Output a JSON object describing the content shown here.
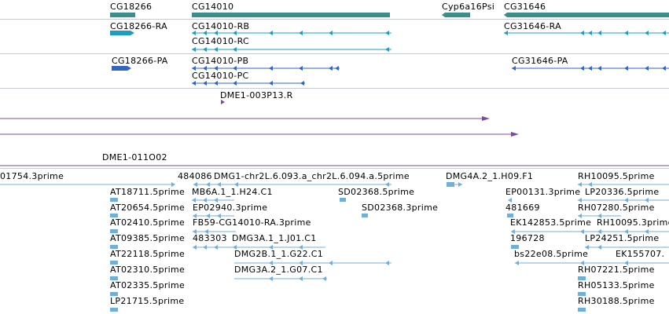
{
  "colors": {
    "gene": "#3a8e8b",
    "transcript_rna": "#1e9dbf",
    "transcript_protein": "#2f66c4",
    "primer": "#7a4aa8",
    "est": "#6fb0d8",
    "divider": "#c6ccd2"
  },
  "tracks": {
    "genes": {
      "labels": [
        "CG18266",
        "CG14010",
        "Cyp6a16Psi",
        "CG31646"
      ]
    },
    "transcripts": {
      "labels": [
        "CG18266-RA",
        "CG14010-RB",
        "CG14010-RC",
        "CG31646-RA"
      ]
    },
    "translations": {
      "labels": [
        "CG18266-PA",
        "CG14010-PB",
        "CG14010-PC",
        "CG31646-PA"
      ]
    },
    "primers": {
      "labels": [
        "DME1-003P13.R",
        "DME1-011O02"
      ]
    },
    "ests": {
      "labels": [
        "01754.3prime",
        "484086",
        "DMG1-chr2L.6.093.a_chr2L.6.094.a.5prime",
        "DMG4A.2_1.H09.F1",
        "RH10095.5prime",
        "AT18711.5prime",
        "MB6A.1_1.H24.C1",
        "SD02368.5prime",
        "EP00131.3prime",
        "LP20336.5prime",
        "AT20654.5prime",
        "EP02940.3prime",
        "SD02368.3prime",
        "481669",
        "RH07280.5prime",
        "AT02410.5prime",
        "FB59-CG14010-RA.3prime",
        "EK142853.5prime",
        "RH10095.3prime",
        "AT09385.5prime",
        "483303",
        "DMG3A.1_1.J01.C1",
        "196728",
        "LP24251.5prime",
        "AT22118.5prime",
        "DMG2B.1_1.G22.C1",
        "bs22e08.5prime",
        "EK155707.",
        "AT02310.5prime",
        "DMG3A.2_1.G07.C1",
        "RH07221.5prime",
        "AT02335.5prime",
        "RH05133.5prime",
        "LP21715.5prime",
        "RH30188.5prime"
      ]
    }
  }
}
